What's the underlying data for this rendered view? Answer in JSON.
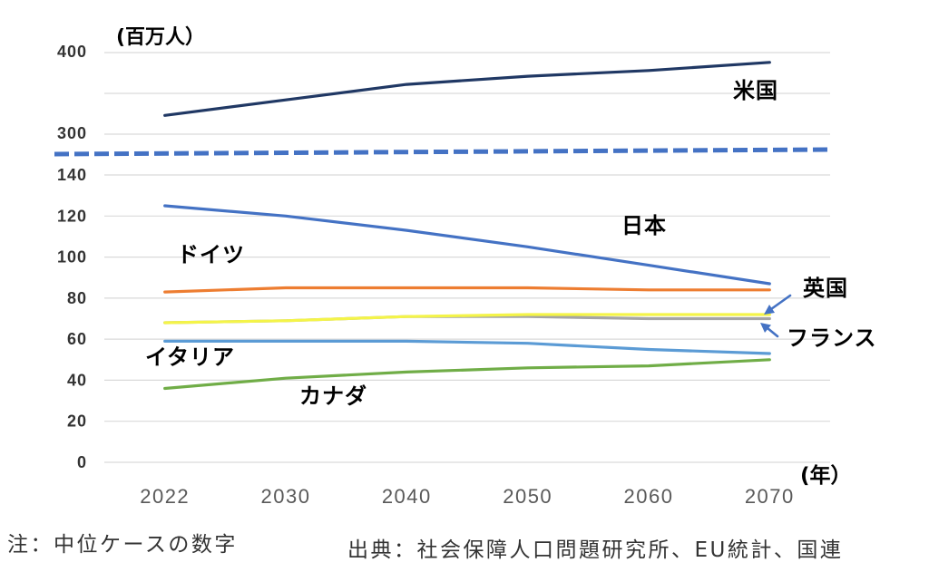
{
  "chart_data": {
    "type": "line",
    "ylabel": "(百万人）",
    "xlabel": "(年）",
    "categories": [
      "2022",
      "2030",
      "2040",
      "2050",
      "2060",
      "2070"
    ],
    "y_ticks_upper": [
      400,
      300
    ],
    "y_ticks_lower": [
      140,
      120,
      100,
      80,
      60,
      40,
      20,
      0
    ],
    "ylim_upper": [
      300,
      400
    ],
    "ylim_lower": [
      0,
      140
    ],
    "axis_break": true,
    "grid": true,
    "series": [
      {
        "name": "米国",
        "color": "#203864",
        "values": [
          323,
          342,
          361,
          371,
          378,
          388
        ]
      },
      {
        "name": "日本",
        "color": "#4472C4",
        "values": [
          125,
          120,
          113,
          105,
          96,
          87
        ]
      },
      {
        "name": "ドイツ",
        "color": "#ED7D31",
        "values": [
          83,
          85,
          85,
          85,
          84,
          84
        ]
      },
      {
        "name": "フランス",
        "color": "#A5A5A5",
        "values": [
          68,
          69,
          71,
          71,
          70,
          70
        ]
      },
      {
        "name": "英国",
        "color": "#F4F448",
        "values": [
          68,
          69,
          71,
          72,
          72,
          72
        ]
      },
      {
        "name": "イタリア",
        "color": "#5B9BD5",
        "values": [
          59,
          59,
          59,
          58,
          55,
          53
        ]
      },
      {
        "name": "カナダ",
        "color": "#70AD47",
        "values": [
          36,
          41,
          44,
          46,
          47,
          50
        ]
      }
    ],
    "colors": {
      "axis_break": "#4472C4",
      "label_arrow": "#4472C4",
      "grid": "#D9D9D9"
    }
  },
  "footer": {
    "note": "注：中位ケースの数字",
    "source": "出典：社会保障人口問題研究所、EU統計、国連"
  }
}
